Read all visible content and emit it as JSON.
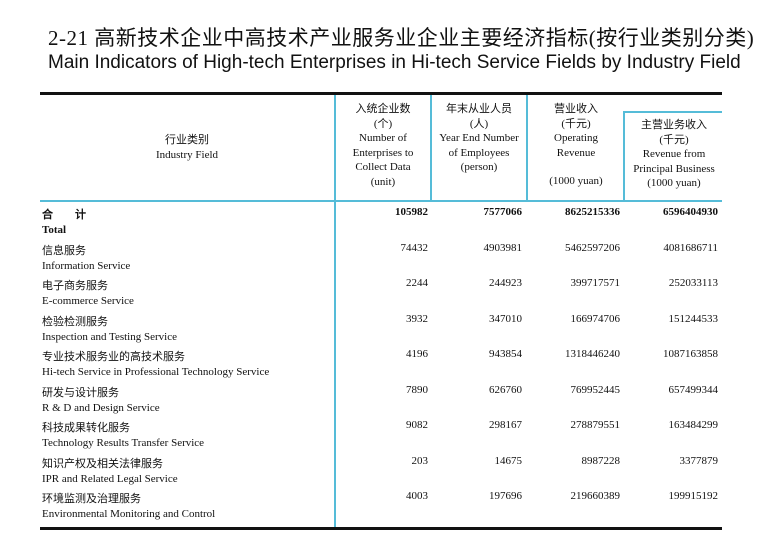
{
  "title_cn": "2-21  高新技术企业中高技术产业服务业企业主要经济指标(按行业类别分类)",
  "title_en": "Main Indicators of High-tech Enterprises in Hi-tech Service Fields by Industry Field",
  "headers": {
    "field": {
      "cn": "行业类别",
      "en": "Industry Field"
    },
    "cols": [
      {
        "cn": "入统企业数",
        "unit_cn": "(个)",
        "en": "Number of Enterprises to Collect Data",
        "unit": "(unit)"
      },
      {
        "cn": "年末从业人员",
        "unit_cn": "(人)",
        "en": "Year End Number of Employees",
        "unit": "(person)"
      },
      {
        "cn": "营业收入",
        "unit_cn": "(千元)",
        "en": "Operating Revenue",
        "unit": "(1000 yuan)"
      },
      {
        "cn": "主营业务收入",
        "unit_cn": "(千元)",
        "en": "Revenue from Principal Business",
        "unit": "(1000 yuan)"
      }
    ]
  },
  "rows": [
    {
      "cn": "合　　计",
      "en": "Total",
      "values": [
        "105982",
        "7577066",
        "8625215336",
        "6596404930"
      ]
    },
    {
      "cn": "信息服务",
      "en": "Information Service",
      "values": [
        "74432",
        "4903981",
        "5462597206",
        "4081686711"
      ]
    },
    {
      "cn": "电子商务服务",
      "en": "E-commerce Service",
      "values": [
        "2244",
        "244923",
        "399717571",
        "252033113"
      ]
    },
    {
      "cn": "检验检测服务",
      "en": "Inspection and Testing Service",
      "values": [
        "3932",
        "347010",
        "166974706",
        "151244533"
      ]
    },
    {
      "cn": "专业技术服务业的高技术服务",
      "en": "Hi-tech Service in Professional Technology Service",
      "values": [
        "4196",
        "943854",
        "1318446240",
        "1087163858"
      ]
    },
    {
      "cn": "研发与设计服务",
      "en": "R & D and Design Service",
      "values": [
        "7890",
        "626760",
        "769952445",
        "657499344"
      ]
    },
    {
      "cn": "科技成果转化服务",
      "en": "Technology Results Transfer Service",
      "values": [
        "9082",
        "298167",
        "278879551",
        "163484299"
      ]
    },
    {
      "cn": "知识产权及相关法律服务",
      "en": "IPR and Related Legal Service",
      "values": [
        "203",
        "14675",
        "8987228",
        "3377879"
      ]
    },
    {
      "cn": "环境监测及治理服务",
      "en": "Environmental Monitoring and Control",
      "values": [
        "4003",
        "197696",
        "219660389",
        "199915192"
      ]
    }
  ]
}
